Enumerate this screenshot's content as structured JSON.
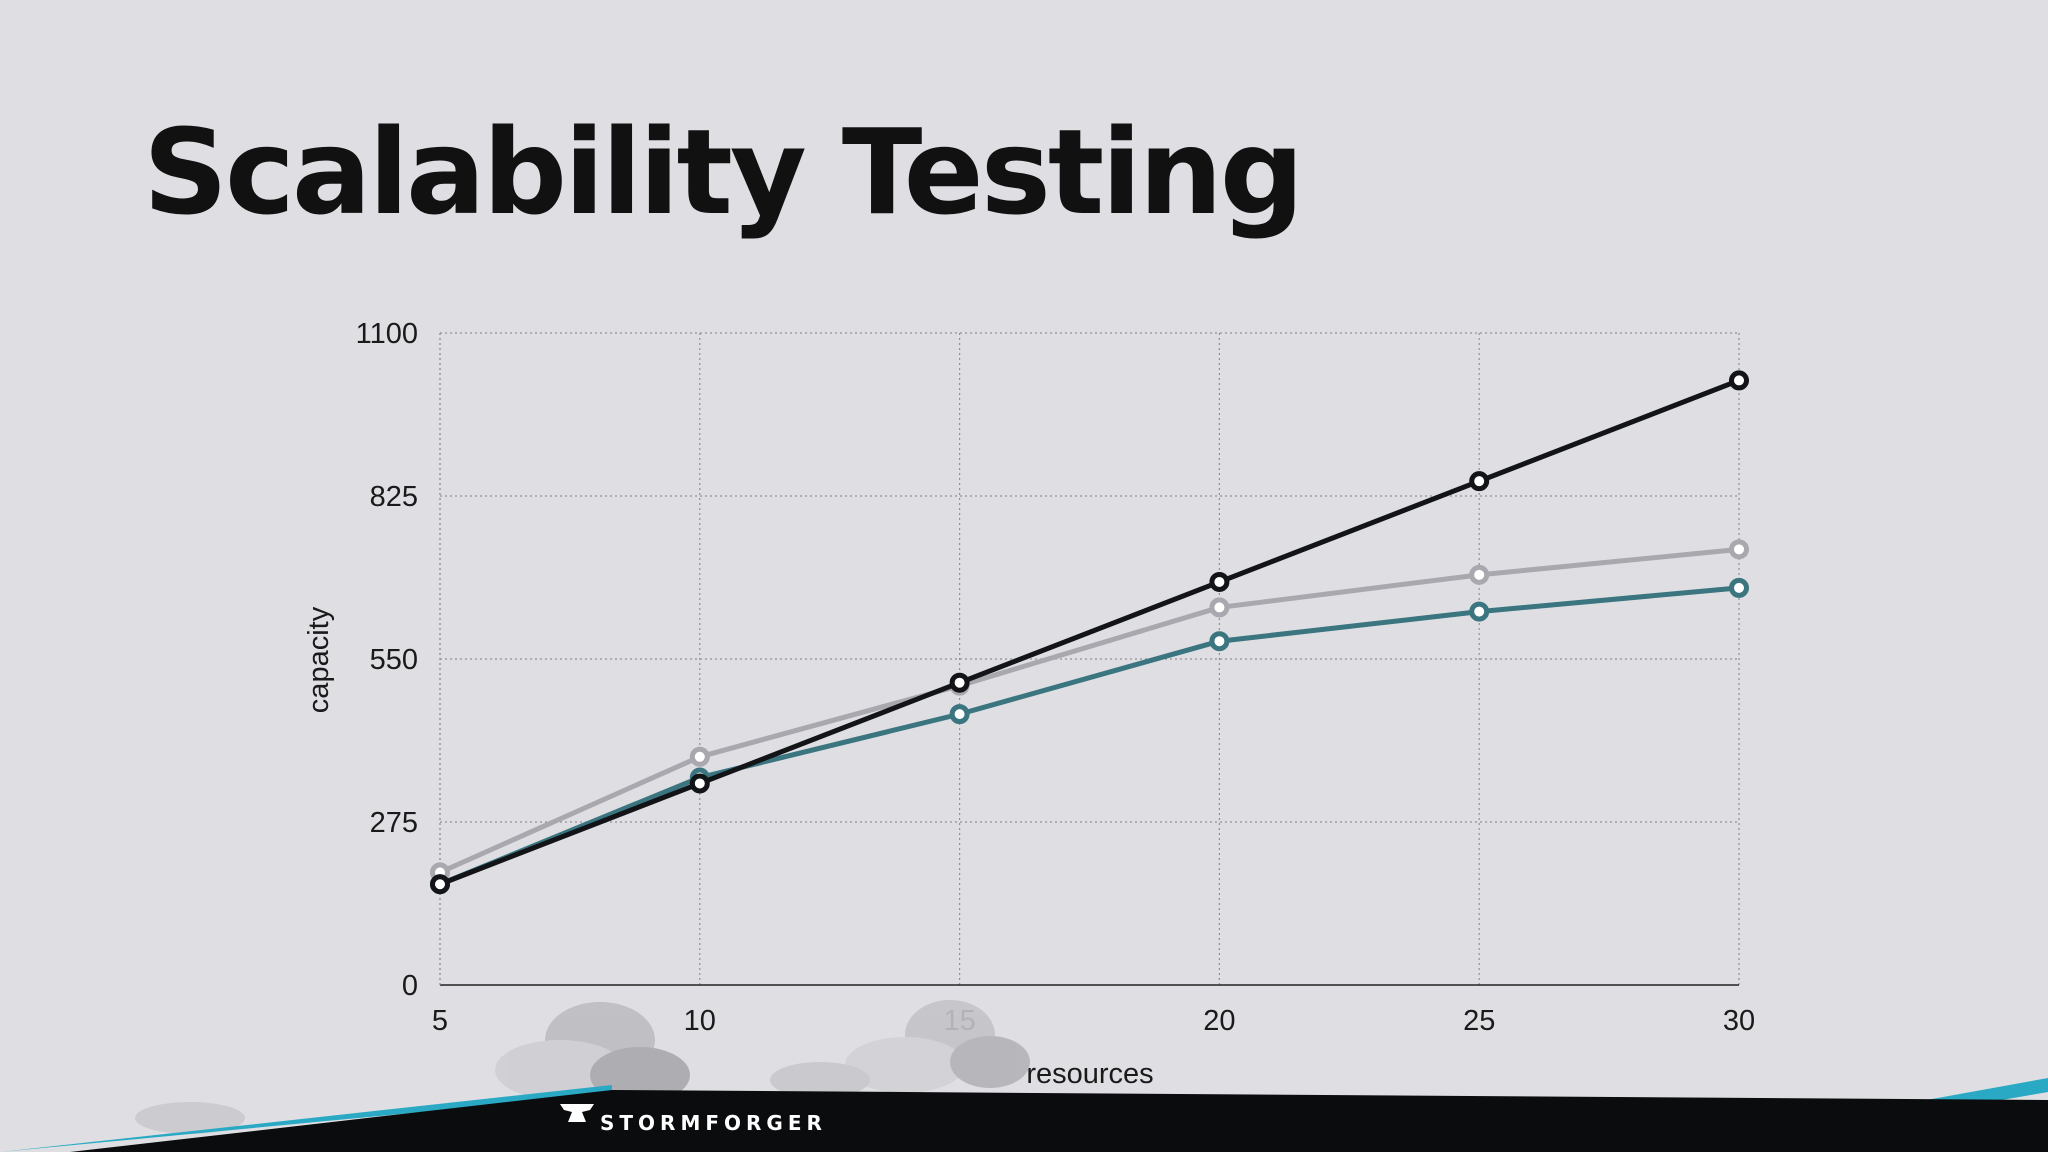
{
  "slide": {
    "title": "Scalability Testing",
    "brand": "STORMFORGER"
  },
  "colors": {
    "background": "#dfdfe3",
    "series_black": "#121417",
    "series_gray": "#a9a8ae",
    "series_teal": "#3a7580",
    "footer_black": "#0b0c0d",
    "footer_accent": "#2aa9c4"
  },
  "chart_data": {
    "type": "line",
    "x": [
      5,
      10,
      15,
      20,
      25,
      30
    ],
    "xlabel": "resources",
    "ylabel": "capacity",
    "xlim": [
      5,
      30
    ],
    "ylim": [
      0,
      1100
    ],
    "xticks": [
      "5",
      "10",
      "15",
      "20",
      "25",
      "30"
    ],
    "yticks": [
      "0",
      "275",
      "550",
      "825",
      "1100"
    ],
    "grid": true,
    "series": [
      {
        "color": "#121417",
        "values": [
          170,
          340,
          510,
          680,
          850,
          1020
        ]
      },
      {
        "color": "#a9a8ae",
        "values": [
          190,
          385,
          505,
          637,
          692,
          735
        ]
      },
      {
        "color": "#3a7580",
        "values": [
          170,
          350,
          457,
          580,
          630,
          670
        ]
      }
    ]
  }
}
